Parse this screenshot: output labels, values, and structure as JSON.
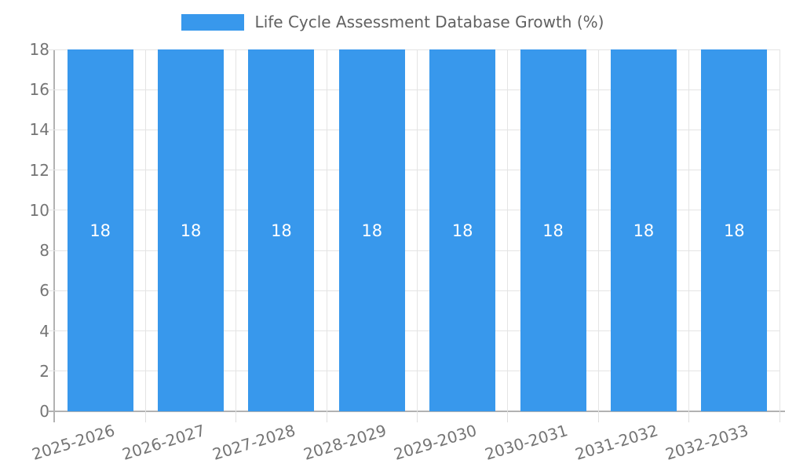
{
  "legend": {
    "label": "Life Cycle Assessment Database Growth (%)"
  },
  "chart_data": {
    "type": "bar",
    "title": "Life Cycle Assessment Database Growth (%)",
    "categories": [
      "2025-2026",
      "2026-2027",
      "2027-2028",
      "2028-2029",
      "2029-2030",
      "2030-2031",
      "2031-2032",
      "2032-2033"
    ],
    "values": [
      18,
      18,
      18,
      18,
      18,
      18,
      18,
      18
    ],
    "bar_value_labels": [
      "18",
      "18",
      "18",
      "18",
      "18",
      "18",
      "18",
      "18"
    ],
    "xlabel": "",
    "ylabel": "",
    "ylim": [
      0,
      18
    ],
    "ytick_step": 2,
    "ytick_labels": [
      "0",
      "2",
      "4",
      "6",
      "8",
      "10",
      "12",
      "14",
      "16",
      "18"
    ],
    "grid": true,
    "legend_position": "top"
  },
  "colors": {
    "bar": "#3898ec",
    "grid": "#e4e4e4",
    "axis_line": "#b2b2b2",
    "axis_text": "#757575",
    "legend_text": "#616161",
    "value_label": "#ffffff",
    "background": "#ffffff"
  }
}
